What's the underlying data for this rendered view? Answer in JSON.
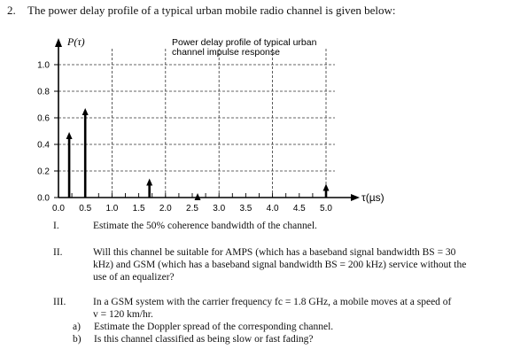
{
  "question": {
    "number": "2.",
    "text": "The power delay profile of a typical urban mobile radio channel is given below:"
  },
  "chart_data": {
    "type": "bar",
    "title": "Power delay profile of typical urban channel impulse response",
    "title_lines": [
      "Power delay profile of typical urban",
      "channel impulse response"
    ],
    "ylabel": "P(τ)",
    "xlabel": "τ(µs)",
    "xlim": [
      0,
      5.0
    ],
    "ylim": [
      0,
      1.0
    ],
    "x_ticks": [
      "0.0",
      "0.5",
      "1.0",
      "1.5",
      "2.0",
      "2.5",
      "3.0",
      "3.5",
      "4.0",
      "4.5",
      "5.0"
    ],
    "y_ticks": [
      "0.0",
      "0.2",
      "0.4",
      "0.6",
      "0.8",
      "1.0"
    ],
    "grid": true,
    "x": [
      0.2,
      0.5,
      1.7,
      2.6,
      5.0
    ],
    "values": [
      0.48,
      0.66,
      0.13,
      0.02,
      0.09
    ]
  },
  "items": [
    {
      "label": "I.",
      "lines": [
        "Estimate the 50% coherence bandwidth of the channel."
      ]
    },
    {
      "label": "II.",
      "lines": [
        "Will this channel be suitable for AMPS (which has a baseband signal bandwidth BS = 30",
        "kHz) and GSM (which has a baseband signal bandwidth BS = 200 kHz) service without the",
        "use of an equalizer?"
      ]
    },
    {
      "label": "III.",
      "lines": [
        "In a GSM system with the carrier frequency fc = 1.8 GHz, a mobile moves at a speed of",
        "v = 120 km/hr."
      ]
    }
  ],
  "subitems": [
    {
      "label": "a)",
      "text": "Estimate the Doppler spread of the corresponding channel."
    },
    {
      "label": "b)",
      "text": "Is this channel classified as being slow or fast fading?"
    }
  ]
}
